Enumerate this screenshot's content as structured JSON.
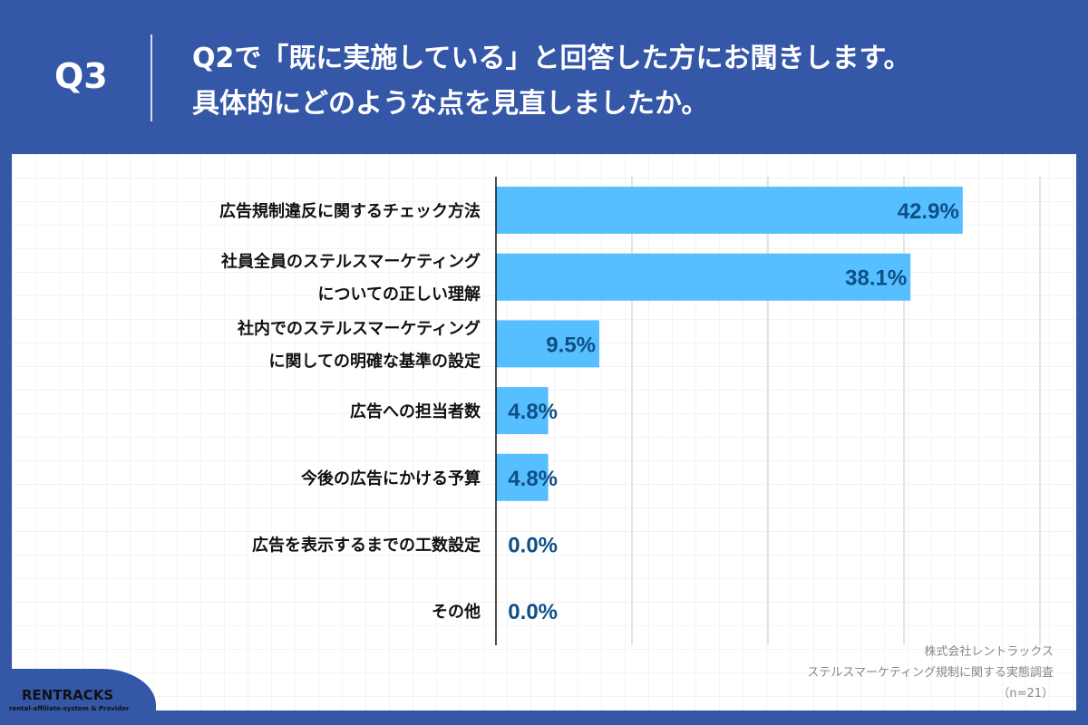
{
  "header": {
    "q": "Q3",
    "title_line1": "Q2で「既に実施している」と回答した方にお聞きします。",
    "title_line2": "具体的にどのような点を見直しましたか。"
  },
  "chart_data": {
    "type": "bar",
    "orientation": "horizontal",
    "categories": [
      [
        "広告規制違反に関するチェック方法"
      ],
      [
        "社員全員のステルスマーケティング",
        "についての正しい理解"
      ],
      [
        "社内でのステルスマーケティング",
        "に関しての明確な基準の設定"
      ],
      [
        "広告への担当者数"
      ],
      [
        "今後の広告にかける予算"
      ],
      [
        "広告を表示するまでの工数設定"
      ],
      [
        "その他"
      ]
    ],
    "values": [
      42.9,
      38.1,
      9.5,
      4.8,
      4.8,
      0.0,
      0.0
    ],
    "value_labels": [
      "42.9%",
      "38.1%",
      "9.5%",
      "4.8%",
      "4.8%",
      "0.0%",
      "0.0%"
    ],
    "xlim": [
      0,
      50
    ],
    "grid": true,
    "colors": {
      "bar": "#56bfff",
      "label": "#0d4f86"
    }
  },
  "source": {
    "line1": "株式会社レントラックス",
    "line2": "ステルスマーケティング規制に関する実態調査",
    "line3": "（n=21）"
  },
  "logo": {
    "name": "RENTRACKS",
    "tagline": "rental-affiliate-system & Provider"
  }
}
